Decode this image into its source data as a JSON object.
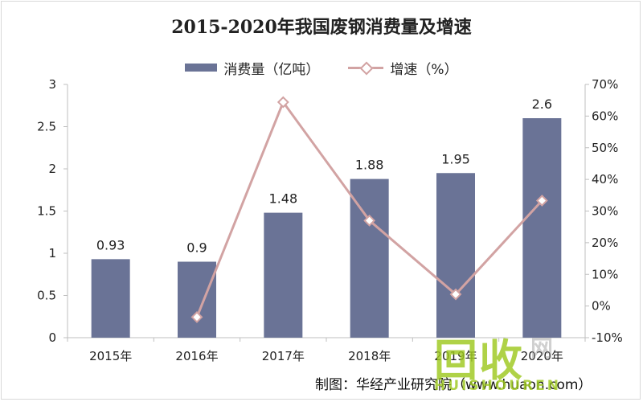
{
  "title": "2015-2020年我国废钢消费量及增速",
  "legend": {
    "bar_label": "消费量（亿吨）",
    "line_label": "增速（%）"
  },
  "source": "制图：华经产业研究院（www.huaon.com）",
  "watermark": {
    "main": "回收",
    "sub": "网",
    "en": "HUISHOUREN"
  },
  "colors": {
    "bar": "#6a7396",
    "line": "#d2a3a3",
    "watermark": "#9ec81e"
  },
  "chart_data": {
    "type": "bar",
    "title": "2015-2020年我国废钢消费量及增速",
    "categories": [
      "2015年",
      "2016年",
      "2017年",
      "2018年",
      "2019年",
      "2020年"
    ],
    "series": [
      {
        "name": "消费量（亿吨）",
        "type": "bar",
        "axis": "left",
        "values": [
          0.93,
          0.9,
          1.48,
          1.88,
          1.95,
          2.6
        ],
        "labels": [
          "0.93",
          "0.9",
          "1.48",
          "1.88",
          "1.95",
          "2.6"
        ]
      },
      {
        "name": "增速（%）",
        "type": "line",
        "axis": "right",
        "values": [
          null,
          -3.5,
          64.4,
          27.0,
          3.7,
          33.3
        ]
      }
    ],
    "y_left": {
      "lim": [
        0,
        3
      ],
      "ticks": [
        0,
        0.5,
        1,
        1.5,
        2,
        2.5,
        3
      ],
      "tick_labels": [
        "0",
        "0.5",
        "1",
        "1.5",
        "2",
        "2.5",
        "3"
      ]
    },
    "y_right": {
      "lim": [
        -10,
        70
      ],
      "ticks": [
        -10,
        0,
        10,
        20,
        30,
        40,
        50,
        60,
        70
      ],
      "tick_labels": [
        "-10%",
        "0%",
        "10%",
        "20%",
        "30%",
        "40%",
        "50%",
        "60%",
        "70%"
      ]
    },
    "grid": false,
    "legend_position": "top"
  }
}
